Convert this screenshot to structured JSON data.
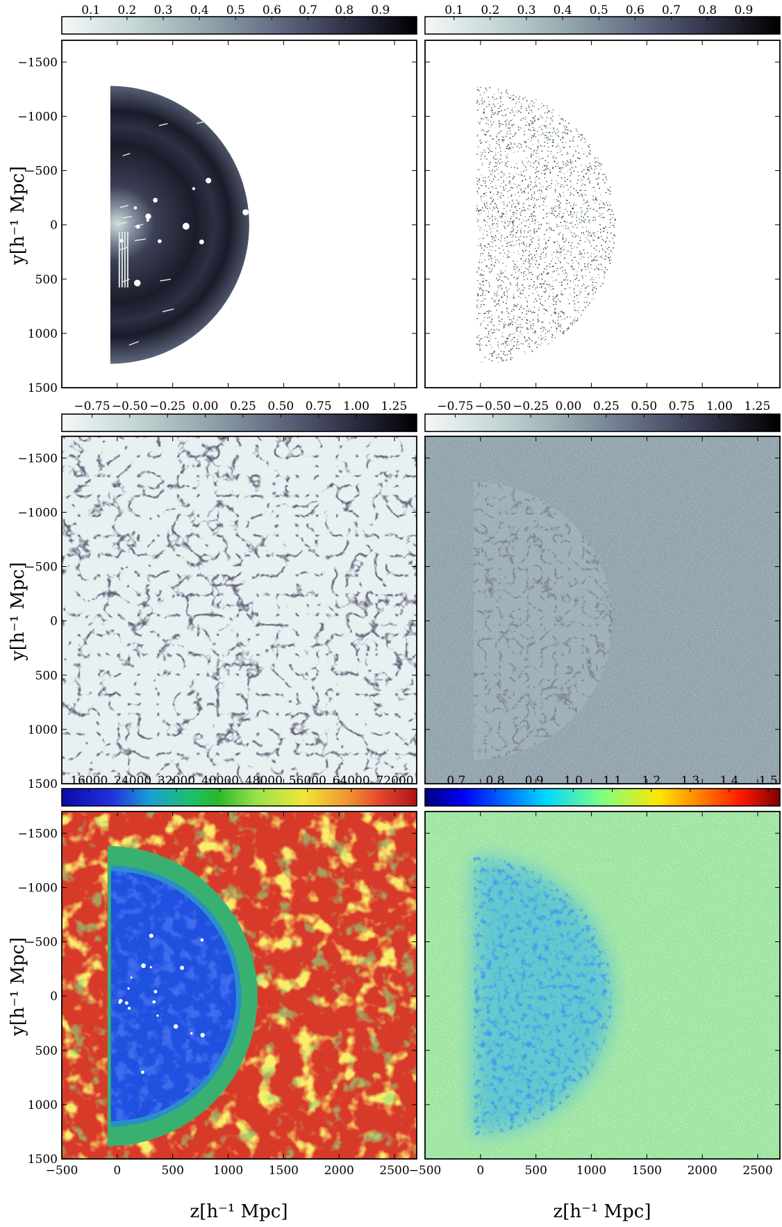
{
  "figure": {
    "x_label": "z[h⁻¹ Mpc]",
    "y_label": "y[h⁻¹ Mpc]",
    "x_ticks": [
      "−500",
      "0",
      "500",
      "1000",
      "1500",
      "2000",
      "2500"
    ],
    "y_ticks": [
      "−1500",
      "−1000",
      "−500",
      "0",
      "500",
      "1000",
      "1500"
    ],
    "xlim": [
      -500,
      2700
    ],
    "ylim": [
      -1700,
      1500
    ]
  },
  "panels": [
    {
      "id": "top-left",
      "description": "completeness / selection mask (half disk)",
      "colormap": "bone_r",
      "colorbar_ticks": [
        "0.1",
        "0.2",
        "0.3",
        "0.4",
        "0.5",
        "0.6",
        "0.7",
        "0.8",
        "0.9"
      ],
      "colorbar_range": [
        0.02,
        1.0
      ]
    },
    {
      "id": "top-right",
      "description": "galaxy distribution (points in half disk)",
      "colormap": "bone_r",
      "colorbar_ticks": [
        "0.1",
        "0.2",
        "0.3",
        "0.4",
        "0.5",
        "0.6",
        "0.7",
        "0.8",
        "0.9"
      ],
      "colorbar_range": [
        0.02,
        1.0
      ]
    },
    {
      "id": "middle-left",
      "description": "density field sample (full box)",
      "colormap": "bone_r",
      "colorbar_ticks": [
        "−0.75",
        "−0.50",
        "−0.25",
        "0.00",
        "0.25",
        "0.50",
        "0.75",
        "1.00",
        "1.25"
      ],
      "colorbar_range": [
        -0.95,
        1.4
      ]
    },
    {
      "id": "middle-right",
      "description": "ensemble mean density",
      "colormap": "bone_r",
      "colorbar_ticks": [
        "−0.75",
        "−0.50",
        "−0.25",
        "0.00",
        "0.25",
        "0.50",
        "0.75",
        "1.00",
        "1.25"
      ],
      "colorbar_range": [
        -0.95,
        1.4
      ]
    },
    {
      "id": "bottom-left",
      "description": "variance field",
      "colormap": "jet",
      "colorbar_ticks": [
        "16000",
        "24000",
        "32000",
        "40000",
        "48000",
        "56000",
        "64000",
        "72000"
      ],
      "colorbar_range": [
        11000,
        76000
      ]
    },
    {
      "id": "bottom-right",
      "description": "ratio field",
      "colormap": "jet",
      "colorbar_ticks": [
        "0.7",
        "0.8",
        "0.9",
        "1.0",
        "1.1",
        "1.2",
        "1.3",
        "1.4",
        "1.5"
      ],
      "colorbar_range": [
        0.62,
        1.53
      ]
    }
  ],
  "colors": {
    "bone_r": [
      "#ffffff",
      "#d5e5e3",
      "#a9c1c2",
      "#7f8d9d",
      "#535a6f",
      "#292b3d",
      "#000000"
    ],
    "jet": [
      "#00007f",
      "#0000ff",
      "#007fff",
      "#00ffff",
      "#7fff7f",
      "#ffff00",
      "#ff7f00",
      "#ff0000",
      "#7f0000"
    ],
    "variance_palette": [
      "#0033cc",
      "#1a4fd8",
      "#2a7fc8",
      "#3aa0b8",
      "#48b090",
      "#30c030",
      "#a0e040",
      "#f0e020",
      "#e06010",
      "#d83a2a"
    ],
    "ratio_palette": [
      "#0a3fbf",
      "#1b6fe0",
      "#2aa8e8",
      "#46d0d0",
      "#7fe0a0",
      "#b9ec6a",
      "#d8e84a",
      "#ece24a",
      "#f09a30"
    ]
  }
}
